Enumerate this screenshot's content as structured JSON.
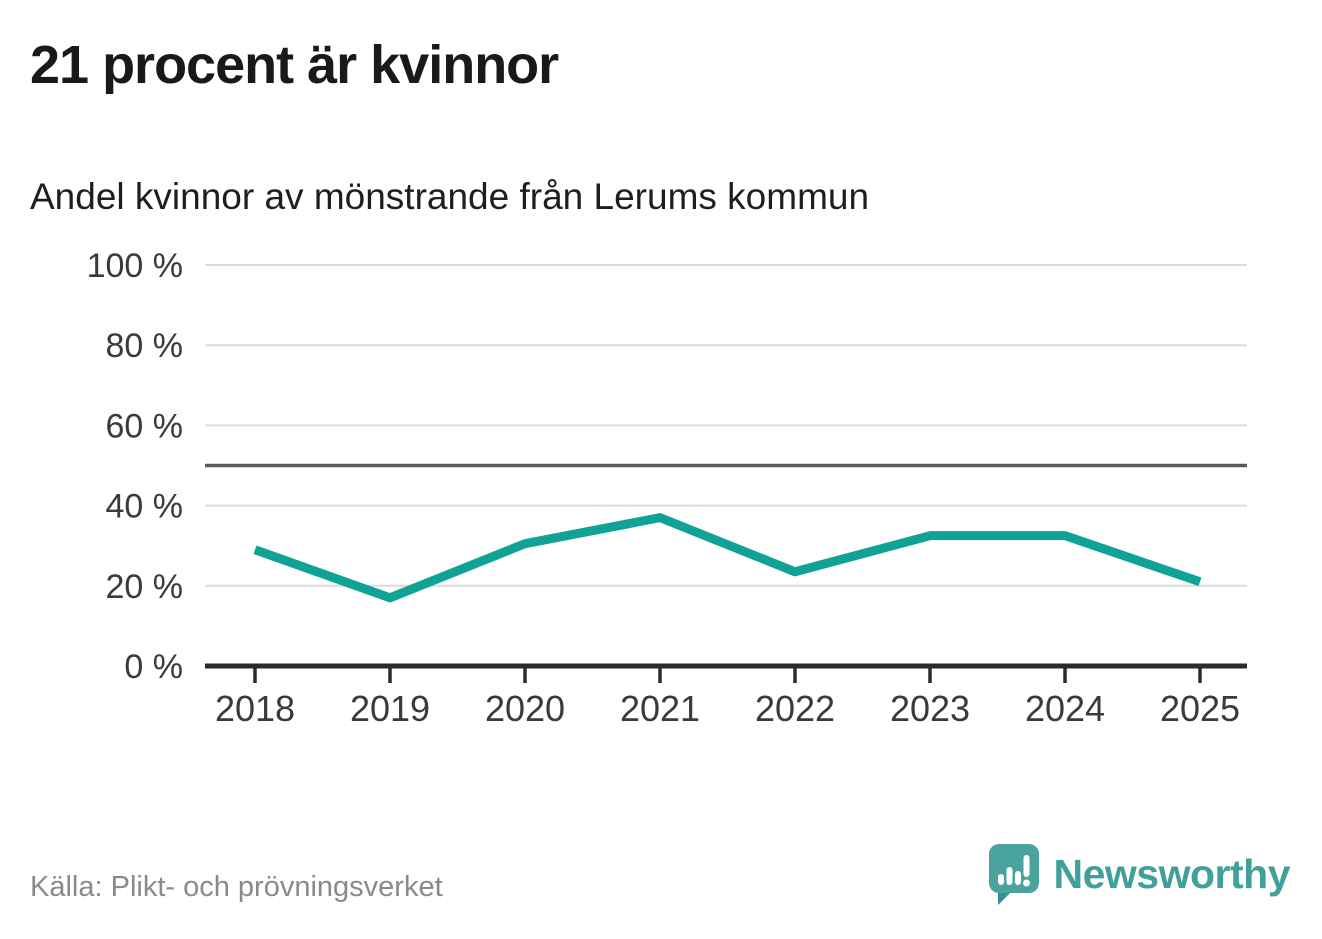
{
  "header": {
    "title": "21 procent är kvinnor",
    "subtitle": "Andel kvinnor av mönstrande från Lerums kommun"
  },
  "chart_data": {
    "type": "line",
    "title": "21 procent är kvinnor",
    "subtitle": "Andel kvinnor av mönstrande från Lerums kommun",
    "categories": [
      "2018",
      "2019",
      "2020",
      "2021",
      "2022",
      "2023",
      "2024",
      "2025"
    ],
    "values": [
      29,
      17,
      30.5,
      37,
      23.5,
      32.5,
      32.5,
      21
    ],
    "ylim": [
      0,
      100
    ],
    "yticks": [
      0,
      20,
      40,
      60,
      80,
      100
    ],
    "ytick_suffix": " %",
    "reference_line": 50,
    "grid": "horizontal",
    "legend": "none",
    "colors": {
      "line": "#11a296",
      "reference": "#5a5a5a",
      "axis": "#2b2b2b",
      "gridline": "#dcdcdc",
      "tick_labels": "#3a3a3a"
    }
  },
  "footer": {
    "source": "Källa: Plikt- och prövningsverket",
    "brand": "Newsworthy"
  },
  "icons": {
    "logo": "newsworthy-speech-bubble-bar-chart"
  }
}
